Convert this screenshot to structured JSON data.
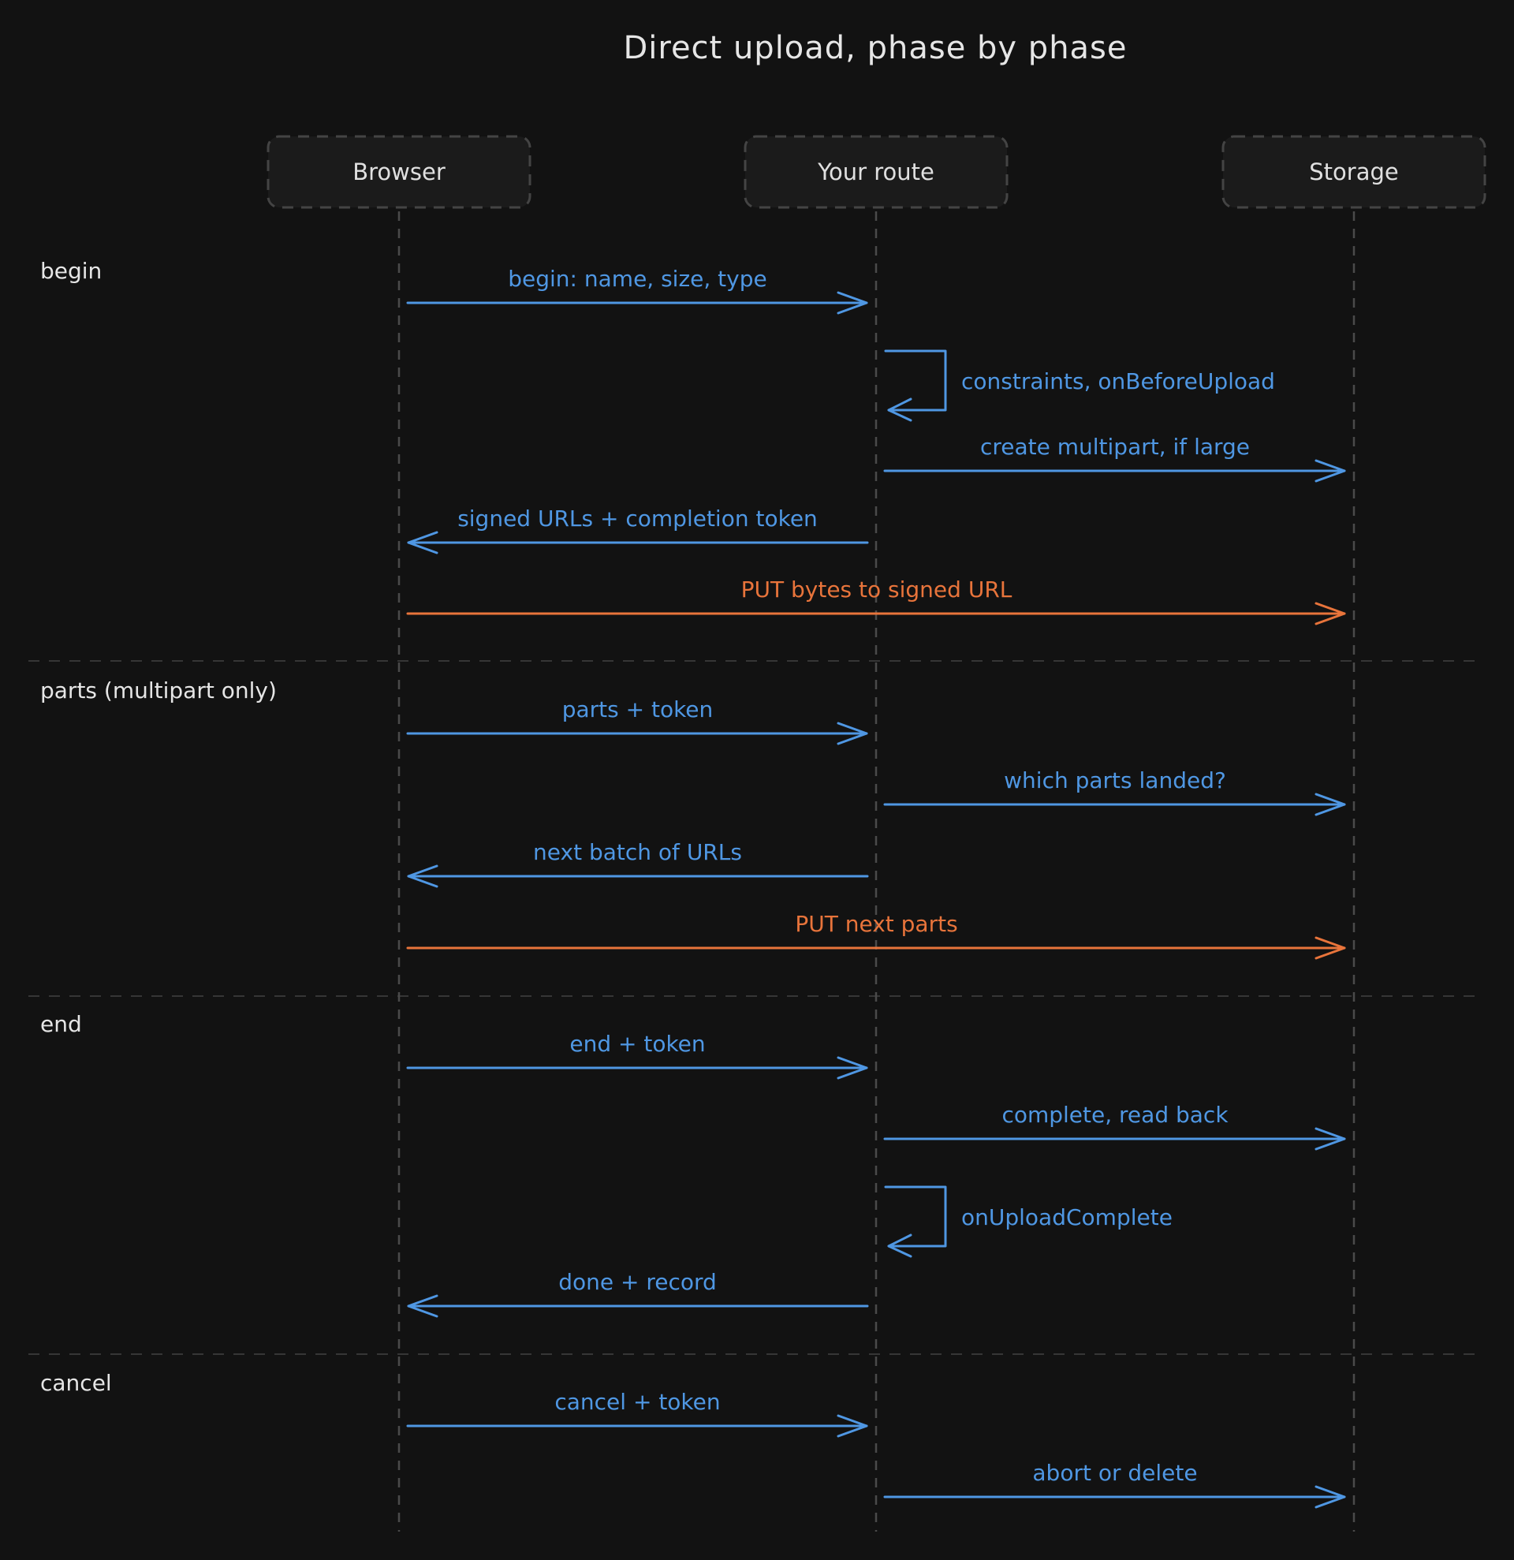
{
  "title": "Direct upload, phase by phase",
  "colors": {
    "background": "#121212",
    "request": "#4f97e3",
    "bytes": "#e8743b",
    "lifeline": "#4a4a4a",
    "text": "#e6e6e6"
  },
  "actors": [
    {
      "id": "browser",
      "label": "Browser"
    },
    {
      "id": "route",
      "label": "Your route"
    },
    {
      "id": "storage",
      "label": "Storage"
    }
  ],
  "phases": [
    {
      "label": "begin"
    },
    {
      "label": "parts (multipart only)"
    },
    {
      "label": "end"
    },
    {
      "label": "cancel"
    }
  ],
  "messages": [
    {
      "from": "browser",
      "to": "route",
      "label": "begin: name, size, type",
      "kind": "request"
    },
    {
      "from": "route",
      "to": "route",
      "label": "constraints, onBeforeUpload",
      "kind": "request"
    },
    {
      "from": "route",
      "to": "storage",
      "label": "create multipart, if large",
      "kind": "request"
    },
    {
      "from": "route",
      "to": "browser",
      "label": "signed URLs + completion token",
      "kind": "request"
    },
    {
      "from": "browser",
      "to": "storage",
      "label": "PUT bytes to signed URL",
      "kind": "bytes"
    },
    {
      "from": "browser",
      "to": "route",
      "label": "parts + token",
      "kind": "request"
    },
    {
      "from": "route",
      "to": "storage",
      "label": "which parts landed?",
      "kind": "request"
    },
    {
      "from": "route",
      "to": "browser",
      "label": "next batch of URLs",
      "kind": "request"
    },
    {
      "from": "browser",
      "to": "storage",
      "label": "PUT next parts",
      "kind": "bytes"
    },
    {
      "from": "browser",
      "to": "route",
      "label": "end + token",
      "kind": "request"
    },
    {
      "from": "route",
      "to": "storage",
      "label": "complete, read back",
      "kind": "request"
    },
    {
      "from": "route",
      "to": "route",
      "label": "onUploadComplete",
      "kind": "request"
    },
    {
      "from": "route",
      "to": "browser",
      "label": "done + record",
      "kind": "request"
    },
    {
      "from": "browser",
      "to": "route",
      "label": "cancel + token",
      "kind": "request"
    },
    {
      "from": "route",
      "to": "storage",
      "label": "abort or delete",
      "kind": "request"
    }
  ]
}
